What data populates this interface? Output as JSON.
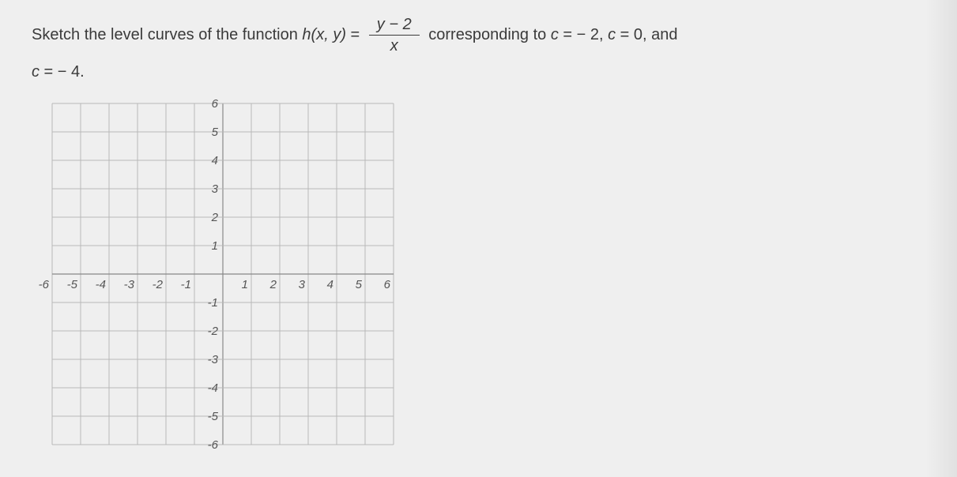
{
  "problem": {
    "prefix": "Sketch the level curves of the function ",
    "func_name": "h",
    "func_args": "(x, y)",
    "equals": " = ",
    "frac_num": "y − 2",
    "frac_den": "x",
    "mid": " corresponding to ",
    "c_sym": "c",
    "eq1": " = ",
    "v1": " − 2, ",
    "c_sym2": "c",
    "eq2": " = ",
    "v2": "0, and",
    "line2_c": "c",
    "line2_eq": " = ",
    "line2_v": " − 4."
  },
  "graph": {
    "xmin": -6,
    "xmax": 6,
    "ymin": -6,
    "ymax": 6,
    "cell": 36,
    "grid_color": "#b8b8b8",
    "axis_color": "#888888",
    "label_color": "#555555",
    "label_fontsize": 15,
    "background": "#efefef",
    "x_ticks": [
      -6,
      -5,
      -4,
      -3,
      -2,
      -1,
      1,
      2,
      3,
      4,
      5,
      6
    ],
    "y_ticks": [
      -6,
      -5,
      -4,
      -3,
      -2,
      -1,
      1,
      2,
      3,
      4,
      5,
      6
    ]
  }
}
